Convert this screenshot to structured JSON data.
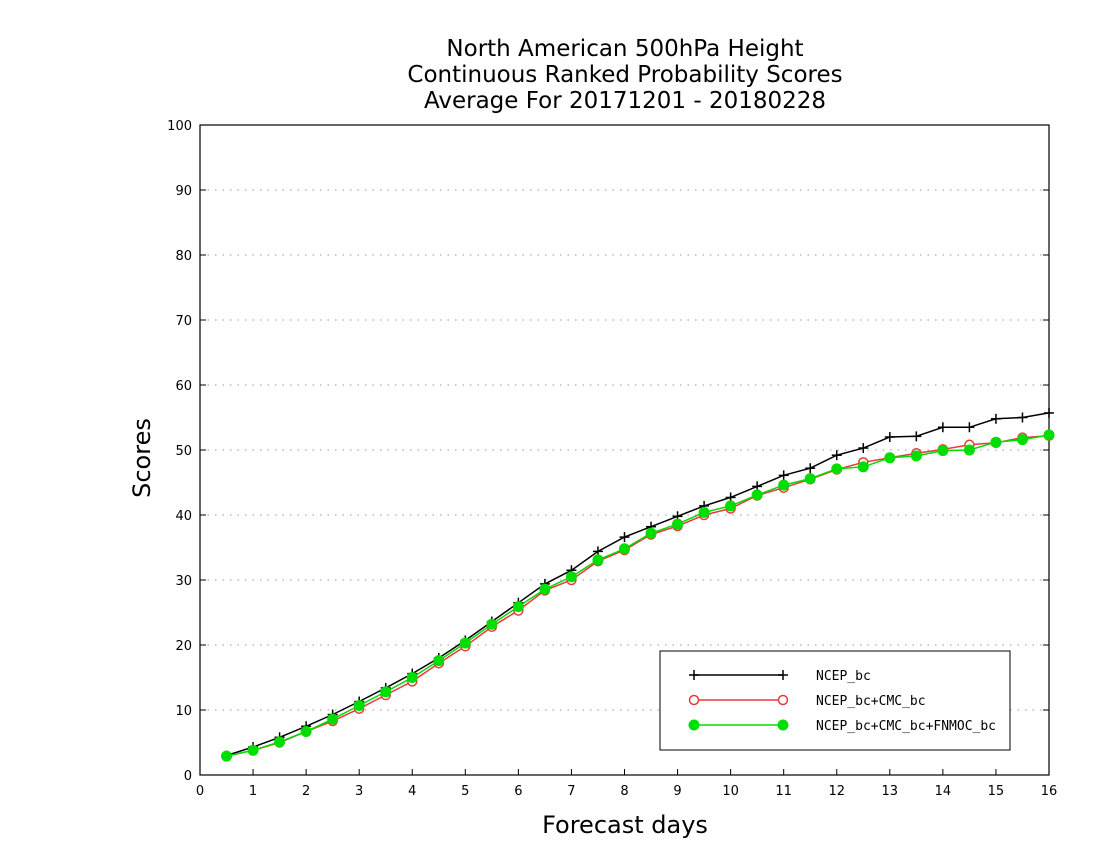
{
  "chart_data": {
    "type": "line",
    "title": [
      "North American 500hPa Height",
      "Continuous Ranked Probability Scores",
      "Average For 20171201 - 20180228"
    ],
    "xlabel": "Forecast days",
    "ylabel": "Scores",
    "xlim": [
      0,
      16
    ],
    "ylim": [
      0,
      100
    ],
    "xticks": [
      0,
      1,
      2,
      3,
      4,
      5,
      6,
      7,
      8,
      9,
      10,
      11,
      12,
      13,
      14,
      15,
      16
    ],
    "yticks": [
      0,
      10,
      20,
      30,
      40,
      50,
      60,
      70,
      80,
      90,
      100
    ],
    "grid": "horizontal dotted",
    "legend_position": "bottom-right",
    "x": [
      0.5,
      1,
      1.5,
      2,
      2.5,
      3,
      3.5,
      4,
      4.5,
      5,
      5.5,
      6,
      6.5,
      7,
      7.5,
      8,
      8.5,
      9,
      9.5,
      10,
      10.5,
      11,
      11.5,
      12,
      12.5,
      13,
      13.5,
      14,
      14.5,
      15,
      15.5,
      16
    ],
    "series": [
      {
        "name": "NCEP_bc",
        "color": "#000000",
        "marker": "plus",
        "values": [
          3.0,
          4.3,
          5.8,
          7.5,
          9.3,
          11.3,
          13.4,
          15.6,
          18.0,
          20.7,
          23.6,
          26.5,
          29.4,
          31.5,
          34.4,
          36.6,
          38.2,
          39.8,
          41.4,
          42.7,
          44.4,
          46.1,
          47.2,
          49.2,
          50.3,
          52.0,
          52.1,
          53.5,
          53.5,
          54.8,
          55.0,
          55.7
        ]
      },
      {
        "name": "NCEP_bc+CMC_bc",
        "color": "#e83a3a",
        "marker": "open-circle",
        "values": [
          2.9,
          3.8,
          5.0,
          6.7,
          8.3,
          10.2,
          12.3,
          14.4,
          17.2,
          19.8,
          22.8,
          25.3,
          28.4,
          30.0,
          32.9,
          34.6,
          37.0,
          38.3,
          40.0,
          41.0,
          43.0,
          44.2,
          45.5,
          47.0,
          48.1,
          48.8,
          49.5,
          50.1,
          50.8,
          51.1,
          51.9,
          52.2
        ]
      },
      {
        "name": "NCEP_bc+CMC_bc+FNMOC_bc",
        "color": "#00dd00",
        "marker": "filled-circle",
        "values": [
          2.9,
          3.8,
          5.1,
          6.7,
          8.6,
          10.7,
          12.8,
          15.0,
          17.6,
          20.3,
          23.2,
          25.9,
          28.6,
          30.5,
          33.1,
          34.8,
          37.2,
          38.6,
          40.4,
          41.4,
          43.1,
          44.6,
          45.6,
          47.1,
          47.4,
          48.8,
          49.1,
          49.9,
          50.0,
          51.2,
          51.6,
          52.3
        ]
      }
    ]
  }
}
